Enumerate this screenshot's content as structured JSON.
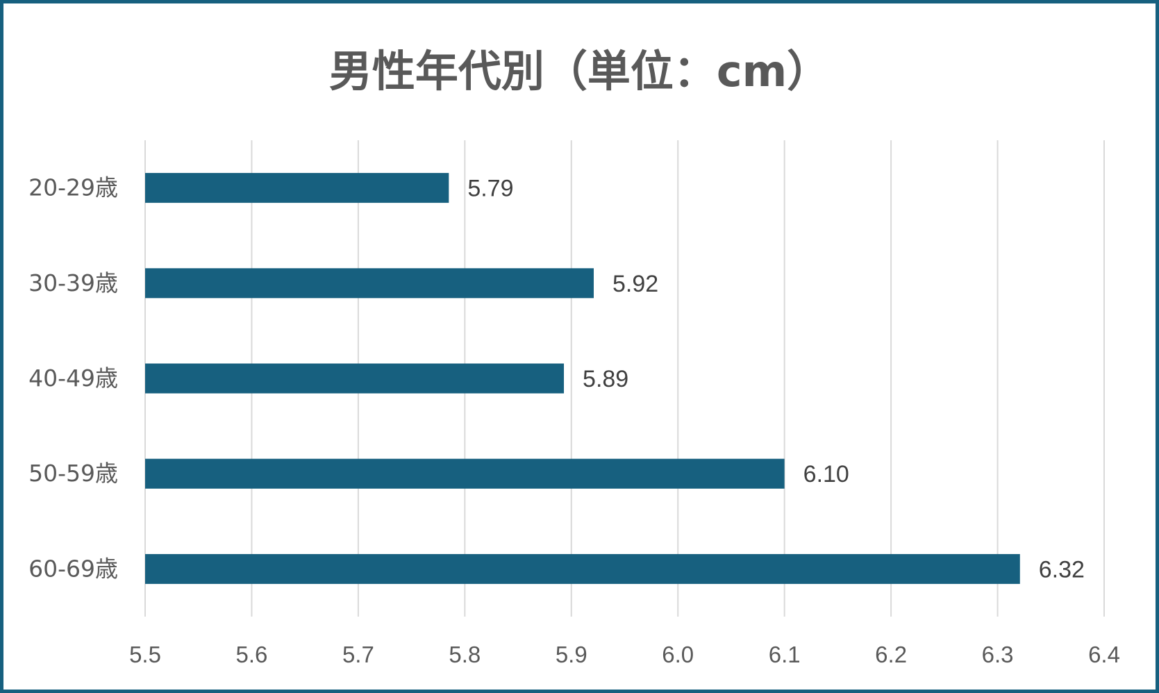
{
  "chart_data": {
    "type": "bar",
    "orientation": "horizontal",
    "title": "男性年代別（単位：cm）",
    "categories": [
      "20-29歳",
      "30-39歳",
      "40-49歳",
      "50-59歳",
      "60-69歳"
    ],
    "values": [
      5.785,
      5.921,
      5.893,
      6.1,
      6.321
    ],
    "data_labels": [
      "5.79",
      "5.92",
      "5.89",
      "6.10",
      "6.32"
    ],
    "xlim": [
      5.5,
      6.4
    ],
    "x_ticks": [
      "5.5",
      "5.6",
      "5.7",
      "5.8",
      "5.9",
      "6.0",
      "6.1",
      "6.2",
      "6.3",
      "6.4"
    ],
    "x_tick_values": [
      5.5,
      5.6,
      5.7,
      5.8,
      5.9,
      6.0,
      6.1,
      6.2,
      6.3,
      6.4
    ],
    "xlabel": "",
    "ylabel": "",
    "grid": "vertical",
    "legend": "none",
    "bar_color": "#17607f",
    "grid_color": "#d9d9d9",
    "frame_color": "#17607f"
  }
}
